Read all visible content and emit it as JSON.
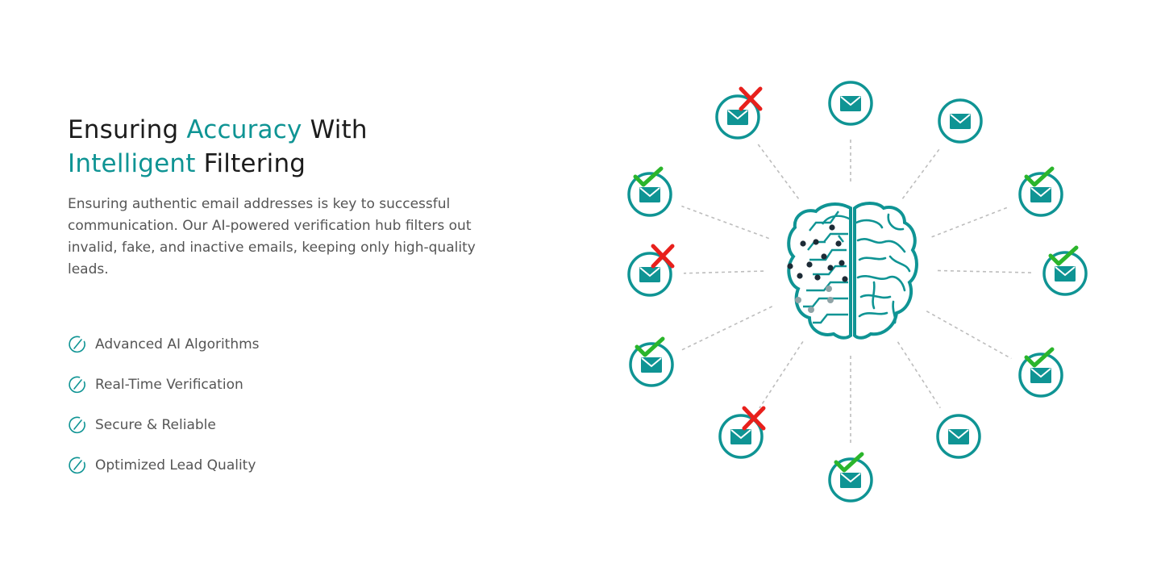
{
  "heading": {
    "line1_part1": "Ensuring ",
    "line1_accent": "Accuracy",
    "line1_part2": " With",
    "line2_accent": "Intelligent",
    "line2_part2": " Filtering"
  },
  "description": "Ensuring authentic email addresses is key to successful communication. Our AI-powered verification hub filters out invalid, fake, and inactive emails, keeping only high-quality leads.",
  "features": [
    {
      "label": "Advanced AI Algorithms"
    },
    {
      "label": "Real-Time Verification"
    },
    {
      "label": "Secure & Reliable"
    },
    {
      "label": "Optimized Lead Quality"
    }
  ],
  "colors": {
    "accent": "#0f9494",
    "valid": "#2bb52b",
    "invalid": "#e8201c",
    "line": "#bdbdbd"
  },
  "diagram": {
    "center_icon": "brain-circuit-icon",
    "emails": [
      {
        "status": "invalid"
      },
      {
        "status": "neutral"
      },
      {
        "status": "neutral"
      },
      {
        "status": "valid"
      },
      {
        "status": "valid"
      },
      {
        "status": "valid"
      },
      {
        "status": "neutral"
      },
      {
        "status": "valid"
      },
      {
        "status": "invalid"
      },
      {
        "status": "valid"
      },
      {
        "status": "invalid"
      },
      {
        "status": "valid"
      }
    ]
  }
}
